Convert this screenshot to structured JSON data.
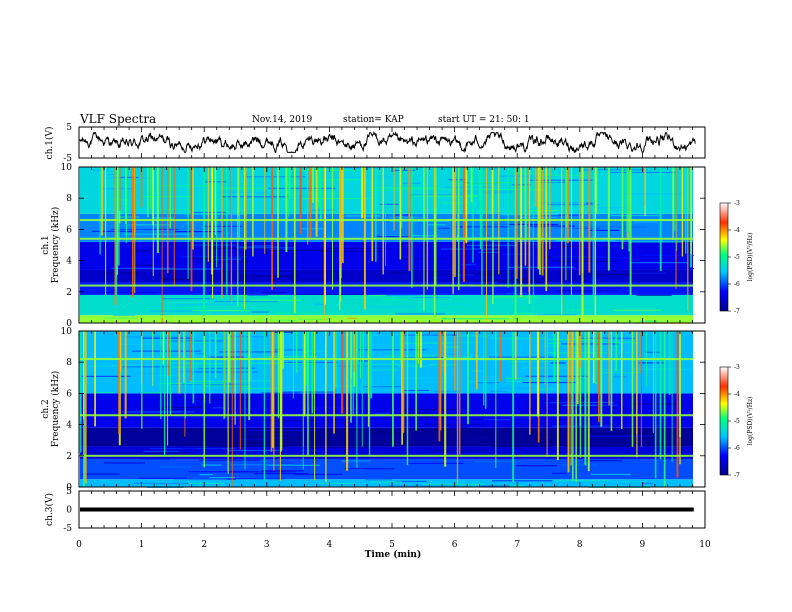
{
  "header": {
    "title": "VLF Spectra",
    "date": "Nov.14, 2019",
    "station": "station= KAP",
    "start": "start  UT =   21: 50: 1"
  },
  "chart_data": [
    {
      "type": "line",
      "panel": "ch1-waveform",
      "ylabel": "ch.1(V)",
      "ylim": [
        -5,
        5
      ],
      "yticks": [
        "5",
        "-5"
      ],
      "xlim": [
        0,
        10
      ],
      "series": [
        {
          "description": "noisy waveform oscillating roughly between -2 and +2 V over 0–9.8 min"
        }
      ]
    },
    {
      "type": "heatmap",
      "panel": "ch1-spectrogram",
      "ylabel": "ch.1\nFrequency  (kHz)",
      "ylim": [
        0,
        10
      ],
      "yticks": [
        "0",
        "2",
        "4",
        "6",
        "8",
        "10"
      ],
      "xlim": [
        0,
        10
      ],
      "colorbar": {
        "label": "log(PSD)(V²/Hz)",
        "ticks": [
          "-3",
          "-4",
          "-5",
          "-6",
          "-7"
        ],
        "range": [
          -7,
          -3
        ]
      },
      "bands_khz": [
        {
          "from": 0.0,
          "to": 0.5,
          "level": -4.6
        },
        {
          "from": 0.5,
          "to": 1.8,
          "level": -5.3
        },
        {
          "from": 1.8,
          "to": 2.6,
          "level": -6.2
        },
        {
          "from": 2.6,
          "to": 3.4,
          "level": -6.6
        },
        {
          "from": 3.4,
          "to": 5.2,
          "level": -6.4
        },
        {
          "from": 5.2,
          "to": 7.0,
          "level": -5.8
        },
        {
          "from": 7.0,
          "to": 10.0,
          "level": -5.4
        }
      ],
      "lines_khz": [
        6.6,
        5.4,
        2.4,
        0.4
      ]
    },
    {
      "type": "heatmap",
      "panel": "ch2-spectrogram",
      "ylabel": "ch.2\nFrequency  (kHz)",
      "ylim": [
        0,
        10
      ],
      "yticks": [
        "0",
        "2",
        "4",
        "6",
        "8",
        "10"
      ],
      "xlim": [
        0,
        10
      ],
      "colorbar": {
        "label": "log(PSD)(V²/Hz)",
        "ticks": [
          "-3",
          "-4",
          "-5",
          "-6",
          "-7"
        ],
        "range": [
          -7,
          -3
        ]
      },
      "bands_khz": [
        {
          "from": 0.0,
          "to": 0.5,
          "level": -5.6
        },
        {
          "from": 0.5,
          "to": 1.8,
          "level": -6.0
        },
        {
          "from": 1.8,
          "to": 2.6,
          "level": -6.5
        },
        {
          "from": 2.6,
          "to": 3.8,
          "level": -6.9
        },
        {
          "from": 3.8,
          "to": 6.0,
          "level": -6.4
        },
        {
          "from": 6.0,
          "to": 10.0,
          "level": -5.6
        }
      ],
      "lines_khz": [
        8.2,
        4.6,
        2.0
      ]
    },
    {
      "type": "line",
      "panel": "ch3-waveform",
      "ylabel": "ch.3(V)",
      "ylim": [
        -5,
        5
      ],
      "yticks": [
        "5",
        "0",
        "-5"
      ],
      "xlim": [
        0,
        10
      ],
      "series": [
        {
          "constant": 0.0
        }
      ]
    }
  ],
  "xaxis": {
    "label": "Time  (min)",
    "ticks": [
      "0",
      "1",
      "2",
      "3",
      "4",
      "5",
      "6",
      "7",
      "8",
      "9",
      "10"
    ]
  }
}
